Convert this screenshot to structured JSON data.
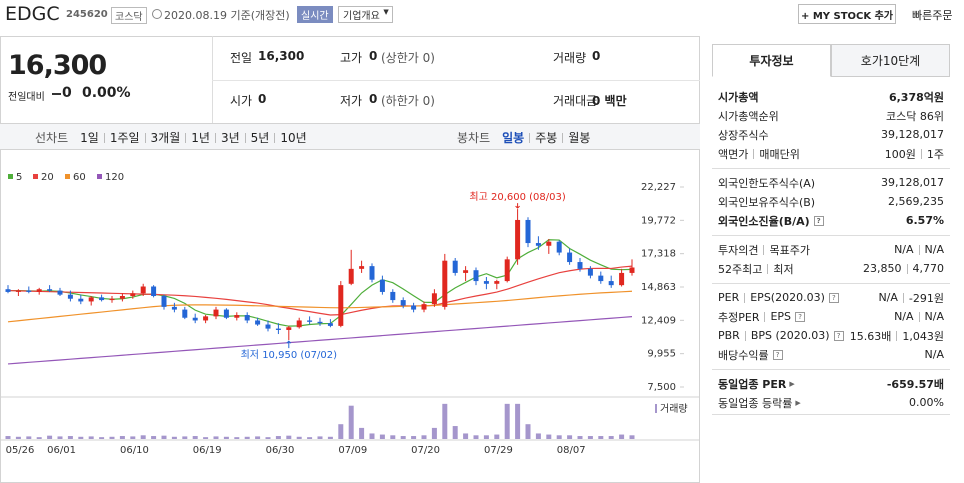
{
  "header": {
    "name": "EDGC",
    "code": "245620",
    "market": "코스닥",
    "date": "2020.08.19 기준(개장전)",
    "realtime": "실시간",
    "overview": "기업개요",
    "my_stock": "+ MY STOCK 추가",
    "quick_order": "빠른주문"
  },
  "price": {
    "current": "16,300",
    "change_label": "전일대비",
    "change": "0",
    "change_rate": "0.00%"
  },
  "summary": [
    [
      {
        "label": "전일",
        "value": "16,300"
      },
      {
        "label": "고가",
        "value": "0",
        "note": "(상한가 0)"
      },
      {
        "label": "거래량",
        "value": "0"
      }
    ],
    [
      {
        "label": "시가",
        "value": "0"
      },
      {
        "label": "저가",
        "value": "0",
        "note": "(하한가 0)"
      },
      {
        "label": "거래대금",
        "value": "0 백만"
      }
    ]
  ],
  "chart_tabs": {
    "line_label": "선차트",
    "line_periods": [
      "1일",
      "1주일",
      "3개월",
      "1년",
      "3년",
      "5년",
      "10년"
    ],
    "candle_label": "봉차트",
    "candle_periods": [
      "일봉",
      "주봉",
      "월봉"
    ]
  },
  "chart_data": {
    "type": "candlestick",
    "up_color": "#e0271f",
    "down_color": "#2466d6",
    "categories": [
      "05/26",
      null,
      null,
      null,
      "06/01",
      null,
      null,
      null,
      null,
      null,
      null,
      "06/10",
      null,
      null,
      null,
      null,
      null,
      null,
      "06/19",
      null,
      null,
      null,
      null,
      null,
      null,
      "06/30",
      null,
      null,
      null,
      null,
      null,
      null,
      "07/09",
      null,
      null,
      null,
      null,
      null,
      null,
      "07/20",
      null,
      null,
      null,
      null,
      null,
      null,
      "07/29",
      null,
      null,
      null,
      null,
      null,
      null,
      "08/07",
      null,
      null,
      null,
      null,
      null,
      null,
      null
    ],
    "open": [
      14700,
      14500,
      14600,
      14500,
      14700,
      14600,
      14300,
      14000,
      13800,
      14100,
      13900,
      14000,
      14200,
      14400,
      14900,
      14200,
      13400,
      13200,
      12600,
      12400,
      12700,
      13200,
      12600,
      12800,
      12400,
      12100,
      11800,
      11700,
      11900,
      12400,
      12300,
      12200,
      12000,
      15100,
      16200,
      16400,
      15400,
      14500,
      13900,
      13500,
      13200,
      13600,
      13400,
      16800,
      15900,
      16100,
      15300,
      15100,
      15300,
      16900,
      19800,
      18100,
      17900,
      18200,
      17400,
      16700,
      16200,
      15700,
      15300,
      15000,
      15900
    ],
    "high": [
      15000,
      14700,
      14900,
      14800,
      15000,
      14800,
      14600,
      14300,
      14200,
      14300,
      14200,
      14400,
      14600,
      15100,
      15000,
      14300,
      13700,
      13400,
      12900,
      12800,
      13400,
      13300,
      13000,
      13000,
      12600,
      12400,
      12200,
      12000,
      12600,
      12700,
      12600,
      12500,
      15300,
      17600,
      16800,
      16600,
      15700,
      14700,
      14100,
      13700,
      13800,
      14700,
      17300,
      17000,
      16400,
      16300,
      15600,
      15400,
      17100,
      20600,
      20000,
      18600,
      18400,
      18300,
      17700,
      17000,
      16400,
      16000,
      15700,
      16200,
      16900
    ],
    "low": [
      14400,
      14200,
      14400,
      14300,
      14500,
      14200,
      13800,
      13600,
      13500,
      13800,
      13700,
      13800,
      14000,
      14200,
      14100,
      13200,
      13000,
      12500,
      12200,
      12200,
      12500,
      12500,
      12400,
      12200,
      12000,
      11600,
      11400,
      10950,
      11800,
      12100,
      12000,
      11900,
      11900,
      15000,
      15900,
      15200,
      14300,
      13700,
      13300,
      13000,
      13000,
      13400,
      13200,
      15700,
      15300,
      15000,
      14700,
      14700,
      15200,
      16500,
      17800,
      17600,
      17300,
      17200,
      16500,
      16000,
      15500,
      15100,
      14800,
      14900,
      15700
    ],
    "close": [
      14500,
      14600,
      14500,
      14700,
      14600,
      14300,
      14000,
      13800,
      14100,
      13900,
      14000,
      14200,
      14400,
      14900,
      14200,
      13400,
      13200,
      12600,
      12400,
      12700,
      13200,
      12600,
      12800,
      12400,
      12100,
      11800,
      11700,
      11900,
      12400,
      12300,
      12200,
      12000,
      15000,
      16200,
      16400,
      15400,
      14500,
      13900,
      13500,
      13200,
      13600,
      14400,
      16800,
      15900,
      16100,
      15300,
      15100,
      15300,
      16900,
      19800,
      18100,
      17900,
      18200,
      17400,
      16700,
      16200,
      15700,
      15300,
      15000,
      15900,
      16300
    ],
    "ma_series": [
      {
        "name": "5",
        "color": "#4fae3a",
        "values": [
          14600,
          14600,
          14580,
          14560,
          14580,
          14540,
          14420,
          14280,
          14160,
          14020,
          13960,
          14000,
          14120,
          14320,
          14340,
          14220,
          14020,
          13660,
          13160,
          12860,
          12780,
          12700,
          12740,
          12740,
          12560,
          12340,
          12120,
          11980,
          12000,
          12100,
          12160,
          12180,
          12760,
          13580,
          14420,
          15000,
          15400,
          15180,
          14720,
          14220,
          13740,
          13720,
          14300,
          14800,
          15200,
          15600,
          15840,
          15540,
          15740,
          16940,
          17400,
          17760,
          18340,
          18320,
          17700,
          17280,
          16840,
          16500,
          16180,
          16140,
          16160
        ]
      },
      {
        "name": "20",
        "color": "#e8413e",
        "values": [
          14600,
          14580,
          14560,
          14540,
          14520,
          14500,
          14480,
          14460,
          14440,
          14420,
          14400,
          14380,
          14360,
          14340,
          14320,
          14290,
          14260,
          14220,
          14170,
          14100,
          14030,
          13950,
          13860,
          13770,
          13680,
          13560,
          13420,
          13300,
          13170,
          13050,
          12920,
          12800,
          12830,
          12990,
          13150,
          13290,
          13400,
          13470,
          13480,
          13470,
          13470,
          13510,
          13710,
          13870,
          14050,
          14200,
          14340,
          14490,
          14700,
          14960,
          15220,
          15470,
          15700,
          15920,
          16060,
          16180,
          16230,
          16240,
          16230,
          16330,
          16400
        ]
      },
      {
        "name": "60",
        "color": "#f0922b",
        "values": [
          12300,
          12380,
          12460,
          12540,
          12620,
          12700,
          12780,
          12860,
          12940,
          13020,
          13100,
          13180,
          13260,
          13340,
          13420,
          13480,
          13520,
          13540,
          13550,
          13550,
          13540,
          13530,
          13520,
          13500,
          13480,
          13460,
          13440,
          13420,
          13400,
          13380,
          13360,
          13340,
          13330,
          13340,
          13360,
          13380,
          13400,
          13420,
          13440,
          13460,
          13480,
          13510,
          13560,
          13610,
          13660,
          13710,
          13760,
          13810,
          13870,
          13940,
          14010,
          14080,
          14150,
          14210,
          14270,
          14330,
          14380,
          14430,
          14470,
          14510,
          14550
        ]
      },
      {
        "name": "120",
        "color": "#9457b8",
        "values": [
          9200,
          9258,
          9316,
          9374,
          9432,
          9490,
          9548,
          9606,
          9664,
          9722,
          9780,
          9838,
          9896,
          9954,
          10012,
          10070,
          10128,
          10186,
          10244,
          10302,
          10360,
          10418,
          10476,
          10534,
          10592,
          10650,
          10708,
          10766,
          10824,
          10882,
          10940,
          10998,
          11056,
          11114,
          11172,
          11230,
          11288,
          11346,
          11404,
          11462,
          11520,
          11578,
          11636,
          11694,
          11752,
          11810,
          11868,
          11926,
          11984,
          12042,
          12100,
          12158,
          12216,
          12274,
          12332,
          12390,
          12448,
          12506,
          12564,
          12622,
          12680
        ]
      }
    ],
    "volume": {
      "name": "거래량",
      "color": "#a596cc",
      "ylim": [
        0,
        100
      ],
      "values": [
        8,
        6,
        7,
        5,
        9,
        7,
        8,
        6,
        7,
        5,
        6,
        8,
        7,
        10,
        8,
        9,
        6,
        7,
        8,
        5,
        7,
        6,
        5,
        6,
        7,
        5,
        8,
        9,
        6,
        5,
        7,
        6,
        40,
        90,
        30,
        15,
        12,
        10,
        8,
        8,
        10,
        30,
        95,
        35,
        15,
        10,
        10,
        12,
        95,
        95,
        40,
        15,
        12,
        10,
        10,
        8,
        8,
        8,
        8,
        12,
        10
      ]
    },
    "annotations": {
      "high": "최고 20,600 (08/03)",
      "low": "최저 10,950 (07/02)"
    },
    "ylim": [
      7500,
      22227
    ],
    "yticks": [
      {
        "value": 22227,
        "label": "22,227"
      },
      {
        "value": 19772,
        "label": "19,772"
      },
      {
        "value": 17318,
        "label": "17,318"
      },
      {
        "value": 14863,
        "label": "14,863"
      },
      {
        "value": 12409,
        "label": "12,409"
      },
      {
        "value": 9955,
        "label": "9,955"
      },
      {
        "value": 7500,
        "label": "7,500"
      }
    ],
    "grid": false
  },
  "invest_info": {
    "tabs": [
      "투자정보",
      "호가10단계"
    ],
    "sections": [
      [
        {
          "label": [
            "시가총액"
          ],
          "value": [
            "6,378억원"
          ],
          "strong": true
        },
        {
          "label": [
            "시가총액순위"
          ],
          "value": [
            "코스닥 86위"
          ]
        },
        {
          "label": [
            "상장주식수"
          ],
          "value": [
            "39,128,017"
          ]
        },
        {
          "label": [
            "액면가",
            "매매단위"
          ],
          "value": [
            "100원",
            "1주"
          ]
        }
      ],
      [
        {
          "label": [
            "외국인한도주식수(A)"
          ],
          "value": [
            "39,128,017"
          ]
        },
        {
          "label": [
            "외국인보유주식수(B)"
          ],
          "value": [
            "2,569,235"
          ]
        },
        {
          "label": [
            "외국인소진율(B/A)"
          ],
          "value": [
            "6.57%"
          ],
          "strong": true,
          "help": true
        }
      ],
      [
        {
          "label": [
            "투자의견",
            "목표주가"
          ],
          "value": [
            "N/A",
            "N/A"
          ]
        },
        {
          "label": [
            "52주최고",
            "최저"
          ],
          "value": [
            "23,850",
            "4,770"
          ]
        }
      ],
      [
        {
          "label": [
            "PER",
            "EPS(2020.03)"
          ],
          "value": [
            "N/A",
            "-291원"
          ],
          "help": true
        },
        {
          "label": [
            "추정PER",
            "EPS"
          ],
          "value": [
            "N/A",
            "N/A"
          ],
          "help": true
        },
        {
          "label": [
            "PBR",
            "BPS (2020.03)"
          ],
          "value": [
            "15.63배",
            "1,043원"
          ],
          "help": true
        },
        {
          "label": [
            "배당수익률"
          ],
          "value": [
            "N/A"
          ],
          "help": true
        }
      ],
      [
        {
          "label": [
            "동일업종 PER"
          ],
          "value": [
            "-659.57배"
          ],
          "strong": true,
          "arrow": true
        },
        {
          "label": [
            "동일업종 등락률"
          ],
          "value": [
            "0.00%"
          ],
          "arrow": true
        }
      ]
    ]
  }
}
